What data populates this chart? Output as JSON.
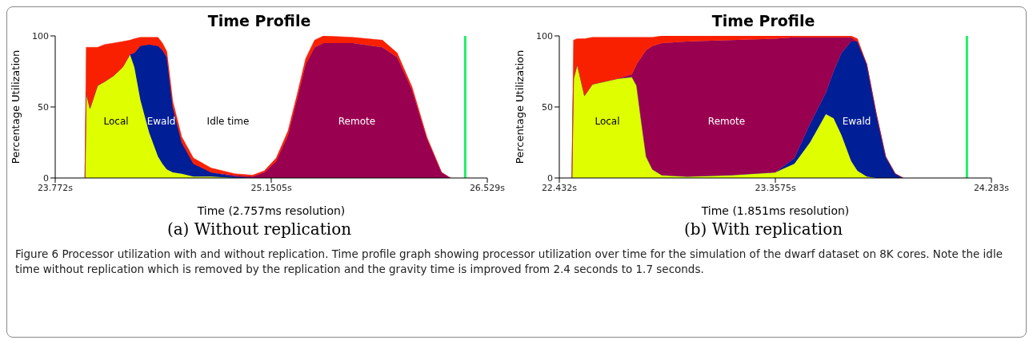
{
  "chart_data": [
    {
      "type": "area",
      "title": "Time Profile",
      "subtitle": "(a) Without replication",
      "xlabel": "Time (2.757ms resolution)",
      "ylabel": "Percentage Utilization",
      "stacked": true,
      "legend": false,
      "grid": false,
      "x": [
        23.962,
        23.97,
        23.994,
        24.042,
        24.089,
        24.145,
        24.202,
        24.249,
        24.277,
        24.315,
        24.371,
        24.428,
        24.456,
        24.484,
        24.522,
        24.579,
        24.654,
        24.767,
        24.918,
        25.031,
        25.106,
        25.182,
        25.257,
        25.314,
        25.37,
        25.427,
        25.483,
        25.672,
        25.86,
        25.954,
        26.049,
        26.143,
        26.237,
        26.294
      ],
      "series": [
        {
          "name": "Local",
          "color": "#dfff00",
          "values": [
            0,
            60,
            49,
            65,
            68,
            72,
            78,
            87,
            78,
            55,
            32,
            15,
            10,
            6,
            4,
            3,
            1,
            1,
            0,
            0,
            0,
            0,
            0,
            0,
            0,
            0,
            0,
            0,
            0,
            0,
            0,
            0,
            0,
            0
          ]
        },
        {
          "name": "Ewald",
          "color": "#001e96",
          "values": [
            0,
            0,
            0,
            0,
            0,
            0,
            0,
            0,
            10,
            38,
            62,
            78,
            80,
            79,
            46,
            22,
            9,
            3,
            1,
            0,
            0,
            0,
            0,
            0,
            0,
            0,
            0,
            0,
            0,
            0,
            0,
            0,
            0,
            0
          ]
        },
        {
          "name": "Remote",
          "color": "#990050",
          "values": [
            0,
            0,
            0,
            0,
            0,
            0,
            0,
            0,
            0,
            0,
            0,
            0,
            0,
            0,
            0,
            0,
            0,
            0,
            1,
            1,
            4,
            12,
            30,
            55,
            80,
            92,
            95,
            95,
            92,
            85,
            62,
            28,
            4,
            0
          ]
        },
        {
          "color": "#f92000",
          "values": [
            0,
            32,
            43,
            27,
            26,
            23,
            18,
            10,
            10,
            6,
            5,
            6,
            5,
            4,
            4,
            4,
            4,
            3,
            1,
            1,
            1,
            2,
            3,
            3,
            4,
            5,
            5,
            4,
            5,
            3,
            2,
            1,
            0,
            0
          ]
        }
      ],
      "xlim": [
        23.772,
        26.529
      ],
      "xticks": [
        {
          "value": 23.772,
          "label": "23.772s"
        },
        {
          "value": 25.1505,
          "label": "25.1505s"
        },
        {
          "value": 26.529,
          "label": "26.529s"
        }
      ],
      "ylim": [
        0,
        100
      ],
      "yticks": [
        0,
        50,
        100
      ],
      "ref_lines": [
        {
          "axis": "x",
          "value": 26.388,
          "color": "#22ee66"
        }
      ],
      "annotations": [
        "Idle time"
      ]
    },
    {
      "type": "area",
      "title": "Time Profile",
      "subtitle": "(b) With replication",
      "xlabel": "Time (1.851ms resolution)",
      "ylabel": "Percentage Utilization",
      "stacked": true,
      "legend": false,
      "grid": false,
      "x": [
        22.486,
        22.493,
        22.509,
        22.54,
        22.574,
        22.628,
        22.682,
        22.743,
        22.763,
        22.783,
        22.804,
        22.831,
        22.871,
        22.979,
        23.168,
        23.357,
        23.439,
        23.506,
        23.574,
        23.607,
        23.641,
        23.682,
        23.709,
        23.749,
        23.79,
        23.83,
        23.871,
        23.905
      ],
      "series": [
        {
          "name": "Local",
          "color": "#dfff00",
          "values": [
            0,
            70,
            80,
            58,
            66,
            68,
            70,
            71,
            65,
            40,
            15,
            6,
            2,
            1,
            2,
            4,
            10,
            25,
            45,
            42,
            30,
            12,
            5,
            1,
            0,
            0,
            0,
            0
          ]
        },
        {
          "name": "Ewald",
          "color": "#001e96",
          "values": [
            0,
            0,
            0,
            0,
            0,
            0,
            0,
            0,
            0,
            0,
            0,
            0,
            0,
            0,
            0,
            0,
            4,
            13,
            15,
            33,
            58,
            84,
            91,
            79,
            45,
            15,
            3,
            0
          ]
        },
        {
          "name": "Remote",
          "color": "#990050",
          "values": [
            0,
            0,
            0,
            0,
            0,
            0,
            0,
            2,
            15,
            45,
            75,
            87,
            93,
            95,
            95,
            94,
            85,
            61,
            39,
            24,
            11,
            3,
            0,
            0,
            0,
            0,
            0,
            0
          ]
        },
        {
          "color": "#f92000",
          "values": [
            0,
            27,
            18,
            40,
            33,
            31,
            29,
            26,
            19,
            14,
            9,
            6,
            5,
            4,
            3,
            2,
            1,
            1,
            1,
            1,
            1,
            1,
            2,
            0,
            0,
            0,
            0,
            0
          ]
        }
      ],
      "xlim": [
        22.432,
        24.283
      ],
      "xticks": [
        {
          "value": 22.432,
          "label": "22.432s"
        },
        {
          "value": 23.3575,
          "label": "23.3575s"
        },
        {
          "value": 24.283,
          "label": "24.283s"
        }
      ],
      "ylim": [
        0,
        100
      ],
      "yticks": [
        0,
        50,
        100
      ],
      "ref_lines": [
        {
          "axis": "x",
          "value": 24.178,
          "color": "#22ee66"
        }
      ],
      "annotations": [
        "Figure 6  Processor utilization with and without replication. Time profile graph showing processor utilization over time for the simulation of the dwarf dataset on 8K cores. Note the idle time without replication which is removed by the replication and the gravity time is improved from 2.4 seconds to 1.7 seconds."
      ]
    }
  ]
}
